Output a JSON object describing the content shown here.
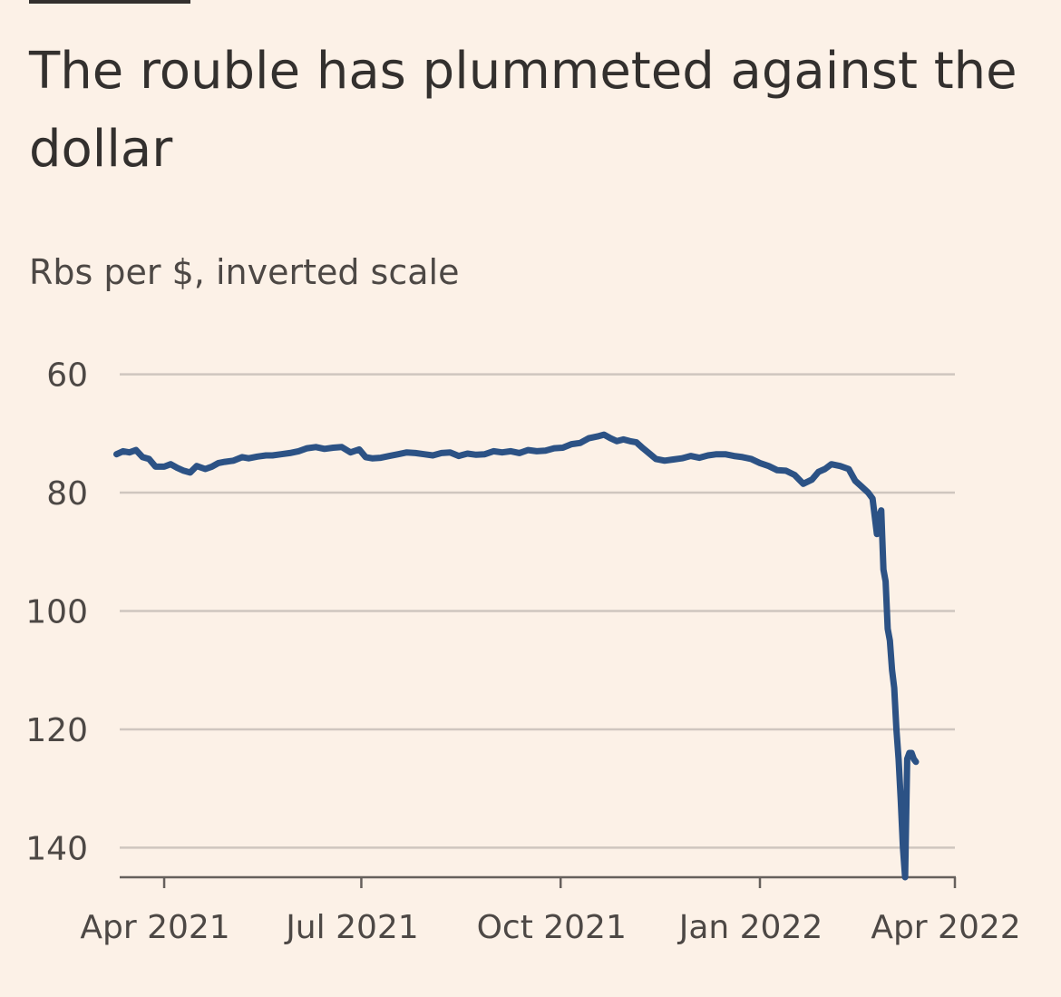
{
  "chart_data": {
    "type": "line",
    "title": "The rouble has plummeted against the dollar",
    "subtitle": "Rbs per $, inverted scale",
    "xlabel": "",
    "ylabel": "Rbs per $",
    "y_inverted": true,
    "ylim": [
      55,
      145
    ],
    "y_ticks": [
      60,
      80,
      100,
      120,
      140
    ],
    "y_tick_labels": [
      "60",
      "80",
      "100",
      "120",
      "140"
    ],
    "x_ticks": [
      "2021-04-01",
      "2021-07-01",
      "2021-10-01",
      "2022-01-01",
      "2022-04-01"
    ],
    "x_tick_labels": [
      "Apr 2021",
      "Jul 2021",
      "Oct 2021",
      "Jan 2022",
      "Apr 2022"
    ],
    "xlim": [
      "2021-03-01",
      "2022-04-01"
    ],
    "grid": true,
    "colors": {
      "background": "#fcf1e7",
      "line": "#2c5285",
      "grid": "#cfc6bf",
      "axis": "#66605c",
      "text": "#33302e"
    },
    "series": [
      {
        "name": "Rbs per $",
        "x": [
          "2021-03-10",
          "2021-03-13",
          "2021-03-16",
          "2021-03-19",
          "2021-03-22",
          "2021-03-25",
          "2021-03-28",
          "2021-04-01",
          "2021-04-04",
          "2021-04-07",
          "2021-04-10",
          "2021-04-13",
          "2021-04-16",
          "2021-04-20",
          "2021-04-23",
          "2021-04-26",
          "2021-04-29",
          "2021-05-03",
          "2021-05-07",
          "2021-05-10",
          "2021-05-14",
          "2021-05-18",
          "2021-05-21",
          "2021-05-25",
          "2021-05-29",
          "2021-06-02",
          "2021-06-06",
          "2021-06-10",
          "2021-06-14",
          "2021-06-18",
          "2021-06-22",
          "2021-06-26",
          "2021-06-30",
          "2021-07-03",
          "2021-07-06",
          "2021-07-10",
          "2021-07-14",
          "2021-07-18",
          "2021-07-22",
          "2021-07-26",
          "2021-07-30",
          "2021-08-03",
          "2021-08-07",
          "2021-08-11",
          "2021-08-15",
          "2021-08-19",
          "2021-08-23",
          "2021-08-27",
          "2021-08-31",
          "2021-09-04",
          "2021-09-08",
          "2021-09-12",
          "2021-09-16",
          "2021-09-20",
          "2021-09-24",
          "2021-09-28",
          "2021-10-02",
          "2021-10-06",
          "2021-10-10",
          "2021-10-14",
          "2021-10-18",
          "2021-10-21",
          "2021-10-24",
          "2021-10-27",
          "2021-10-30",
          "2021-11-02",
          "2021-11-05",
          "2021-11-08",
          "2021-11-11",
          "2021-11-14",
          "2021-11-18",
          "2021-11-22",
          "2021-11-26",
          "2021-11-30",
          "2021-12-04",
          "2021-12-08",
          "2021-12-12",
          "2021-12-16",
          "2021-12-20",
          "2021-12-24",
          "2021-12-28",
          "2022-01-01",
          "2022-01-05",
          "2022-01-09",
          "2022-01-13",
          "2022-01-17",
          "2022-01-21",
          "2022-01-25",
          "2022-01-28",
          "2022-01-31",
          "2022-02-03",
          "2022-02-07",
          "2022-02-11",
          "2022-02-14",
          "2022-02-17",
          "2022-02-20",
          "2022-02-22",
          "2022-02-24",
          "2022-02-25",
          "2022-02-26",
          "2022-02-27",
          "2022-02-28",
          "2022-03-01",
          "2022-03-02",
          "2022-03-03",
          "2022-03-04",
          "2022-03-05",
          "2022-03-06",
          "2022-03-07",
          "2022-03-08",
          "2022-03-09",
          "2022-03-10",
          "2022-03-11",
          "2022-03-12",
          "2022-03-13",
          "2022-03-14"
        ],
        "values": [
          73.5,
          73.0,
          73.2,
          72.8,
          74.0,
          74.3,
          75.6,
          75.6,
          75.2,
          75.8,
          76.3,
          76.6,
          75.5,
          76.0,
          75.6,
          75.0,
          74.8,
          74.6,
          74.0,
          74.2,
          73.9,
          73.7,
          73.7,
          73.5,
          73.3,
          73.0,
          72.5,
          72.3,
          72.6,
          72.4,
          72.3,
          73.2,
          72.7,
          74.0,
          74.2,
          74.1,
          73.8,
          73.5,
          73.2,
          73.3,
          73.5,
          73.7,
          73.3,
          73.2,
          73.8,
          73.4,
          73.6,
          73.5,
          73.0,
          73.2,
          73.0,
          73.3,
          72.8,
          73.0,
          72.9,
          72.5,
          72.4,
          71.8,
          71.6,
          70.8,
          70.5,
          70.2,
          70.8,
          71.3,
          71.0,
          71.3,
          71.5,
          72.5,
          73.4,
          74.3,
          74.6,
          74.4,
          74.2,
          73.8,
          74.1,
          73.7,
          73.5,
          73.5,
          73.8,
          74.0,
          74.3,
          75.0,
          75.5,
          76.2,
          76.3,
          77.0,
          78.5,
          77.8,
          76.5,
          76.0,
          75.2,
          75.5,
          76.0,
          78.0,
          79.0,
          80.0,
          81.0,
          87.0,
          84.0,
          83.0,
          93.0,
          95.0,
          103.0,
          105.0,
          110.0,
          113.0,
          120.0,
          125.0,
          132.0,
          140.0,
          145.0,
          125.0,
          124.0,
          124.0,
          125.0,
          125.5
        ]
      }
    ]
  }
}
